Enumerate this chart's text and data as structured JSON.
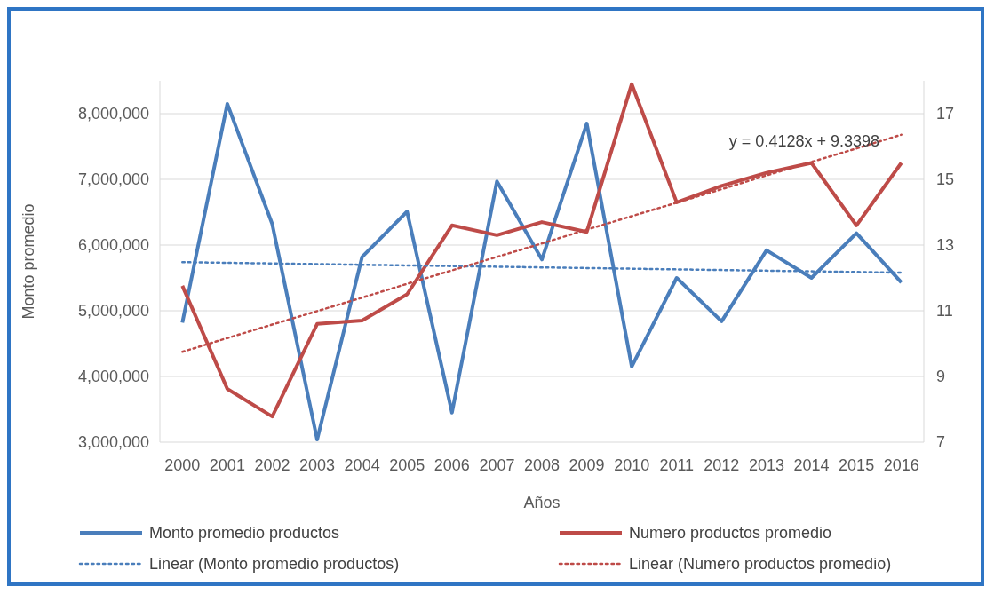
{
  "chart_data": {
    "type": "line",
    "xlabel": "Años",
    "ylabel": "Monto promedio",
    "categories": [
      "2000",
      "2001",
      "2002",
      "2003",
      "2004",
      "2005",
      "2006",
      "2007",
      "2008",
      "2009",
      "2010",
      "2011",
      "2012",
      "2013",
      "2014",
      "2015",
      "2016"
    ],
    "ylim": [
      3000000,
      8500000
    ],
    "yticks": [
      {
        "value": 3000000,
        "label": "3,000,000"
      },
      {
        "value": 4000000,
        "label": "4,000,000"
      },
      {
        "value": 5000000,
        "label": "5,000,000"
      },
      {
        "value": 6000000,
        "label": "6,000,000"
      },
      {
        "value": 7000000,
        "label": "7,000,000"
      },
      {
        "value": 8000000,
        "label": "8,000,000"
      }
    ],
    "y2lim": [
      7,
      18
    ],
    "y2ticks": [
      7,
      9,
      11,
      13,
      15,
      17
    ],
    "grid": "y",
    "legend": "bottom",
    "marker": "none",
    "annotations": [
      "y = 0.4128x + 9.3398"
    ],
    "series": [
      {
        "name": "Monto promedio productos",
        "color": "#4a7ebb",
        "line_style": "solid",
        "values": [
          4820000,
          8150000,
          6320000,
          3040000,
          5820000,
          6510000,
          3450000,
          6970000,
          5780000,
          7850000,
          4150000,
          5500000,
          4840000,
          5920000,
          5500000,
          6180000,
          5430000
        ]
      },
      {
        "name": "Numero productos promedio",
        "color": "#be4b48",
        "axis": "y2",
        "line_style": "solid",
        "values": [
          11.76,
          8.62,
          7.78,
          10.6,
          10.7,
          11.5,
          13.6,
          13.3,
          13.7,
          13.4,
          17.9,
          14.3,
          14.8,
          15.2,
          15.5,
          13.6,
          15.5
        ]
      },
      {
        "name": "Linear (Monto promedio productos)",
        "color": "#4a7ebb",
        "line_style": "dotted",
        "values": [
          5740000,
          5730000,
          5720000,
          5710000,
          5700000,
          5690000,
          5680000,
          5670000,
          5660000,
          5650000,
          5640000,
          5630000,
          5620000,
          5610000,
          5600000,
          5590000,
          5580000
        ]
      },
      {
        "name": "Linear (Numero productos promedio)",
        "color": "#be4b48",
        "axis": "y2",
        "line_style": "dotted",
        "values": [
          9.75,
          10.17,
          10.58,
          10.99,
          11.4,
          11.82,
          12.23,
          12.64,
          13.05,
          13.47,
          13.88,
          14.29,
          14.7,
          15.12,
          15.53,
          15.94,
          16.36
        ]
      }
    ]
  }
}
